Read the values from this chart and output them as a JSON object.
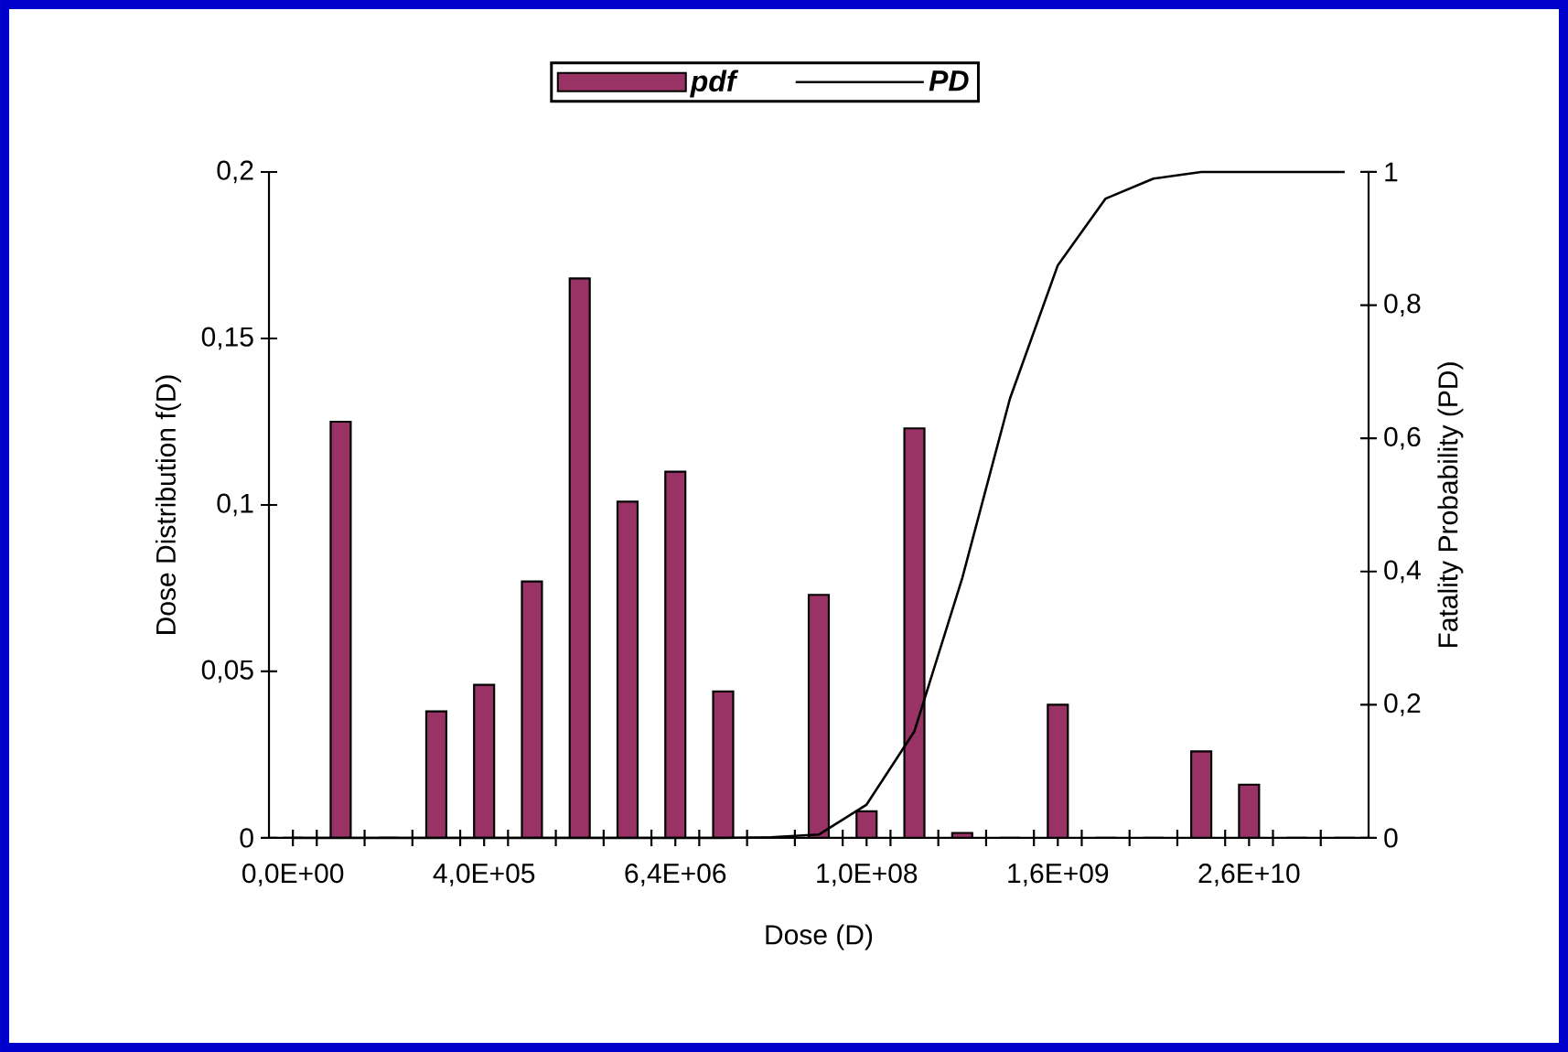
{
  "chart_data": {
    "type": "bar",
    "xlabel": "Dose (D)",
    "ylabel": "Dose Distribution f(D)",
    "y2label": "Fatality Probability (PD)",
    "categories": [
      "0,0E+00",
      null,
      null,
      null,
      "4,0E+05",
      null,
      null,
      null,
      "6,4E+06",
      null,
      null,
      null,
      "1,0E+08",
      null,
      null,
      null,
      "1,6E+09",
      null,
      null,
      null,
      "2,6E+10",
      null,
      null
    ],
    "series": [
      {
        "name": "pdf",
        "color": "#993366",
        "values": [
          0,
          0.125,
          0,
          0.038,
          0.046,
          0.077,
          0.168,
          0.101,
          0.11,
          0.044,
          0,
          0.073,
          0.008,
          0.123,
          0.0015,
          0,
          0.04,
          0,
          0,
          0.026,
          0.016,
          0,
          0
        ]
      },
      {
        "name": "PD",
        "type": "line",
        "axis": "y2",
        "color": "#000000",
        "values": [
          0,
          0,
          0,
          0,
          0,
          0,
          0,
          0,
          0,
          0,
          0.001,
          0.005,
          0.05,
          0.16,
          0.39,
          0.66,
          0.86,
          0.96,
          0.99,
          1,
          1,
          1,
          1
        ]
      }
    ],
    "ylim": [
      0,
      0.2
    ],
    "yticks": [
      0,
      {
        "value": 0.05,
        "label": "0,05"
      },
      {
        "value": 0.1,
        "label": "0,1"
      },
      {
        "value": 0.15,
        "label": "0,15"
      },
      {
        "value": 0.2,
        "label": "0,2"
      }
    ],
    "y2lim": [
      0,
      1
    ],
    "y2ticks": [
      0,
      {
        "value": 0.2,
        "label": "0,2"
      },
      {
        "value": 0.4,
        "label": "0,4"
      },
      {
        "value": 0.6,
        "label": "0,6"
      },
      {
        "value": 0.8,
        "label": "0,8"
      },
      1
    ],
    "legend": "top",
    "marker": "none",
    "line_style": "solid",
    "grid": false
  }
}
